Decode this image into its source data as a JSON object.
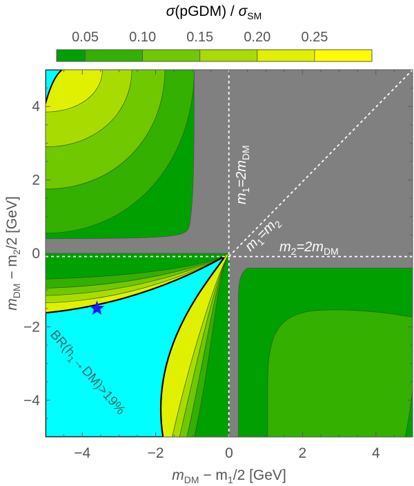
{
  "chart_data": {
    "type": "contour",
    "title": {
      "sigma": "σ",
      "mid": "(pGDM) / ",
      "sigma2": "σ",
      "sub": "SM"
    },
    "colorbar": {
      "ticks": [
        "0.05",
        "0.10",
        "0.15",
        "0.20",
        "0.25"
      ],
      "levels": [
        0.05,
        0.1,
        0.15,
        0.2,
        0.25
      ],
      "range": [
        0.025,
        0.3
      ],
      "colors": [
        "#00a000",
        "#33b000",
        "#70c800",
        "#a8dc00",
        "#e0f000",
        "#ffff00"
      ]
    },
    "xlabel": {
      "a": "m",
      "a_sub": "DM",
      "b": " − m",
      "b_sub": "1",
      "c": "/2 [GeV]"
    },
    "ylabel": {
      "a": "m",
      "a_sub": "DM",
      "b": " − m",
      "b_sub": "2",
      "c": "/2 [GeV]"
    },
    "xlim": [
      -5,
      5
    ],
    "ylim": [
      -5,
      5
    ],
    "xticks": [
      "−4",
      "−2",
      "0",
      "2",
      "4"
    ],
    "yticks": [
      "−4",
      "−2",
      "0",
      "2",
      "4"
    ],
    "annotations": {
      "vertical": {
        "a": "m",
        "s1": "1",
        "b": "=2m",
        "s2": "DM"
      },
      "diagonal": {
        "a": "m",
        "s1": "1",
        "b": "=m",
        "s2": "2"
      },
      "horizontal": {
        "a": "m",
        "s1": "2",
        "b": "=2m",
        "s2": "DM"
      },
      "excluded": {
        "text": "BR(h",
        "s1": "1",
        "rest": "→DM)>19%"
      }
    },
    "benchmark": {
      "x": -3.6,
      "y": -1.5
    },
    "colors": {
      "excluded": "#00ffff",
      "forbidden": "#808080",
      "guides": "#ffffff",
      "star": "#1a1aff"
    }
  }
}
